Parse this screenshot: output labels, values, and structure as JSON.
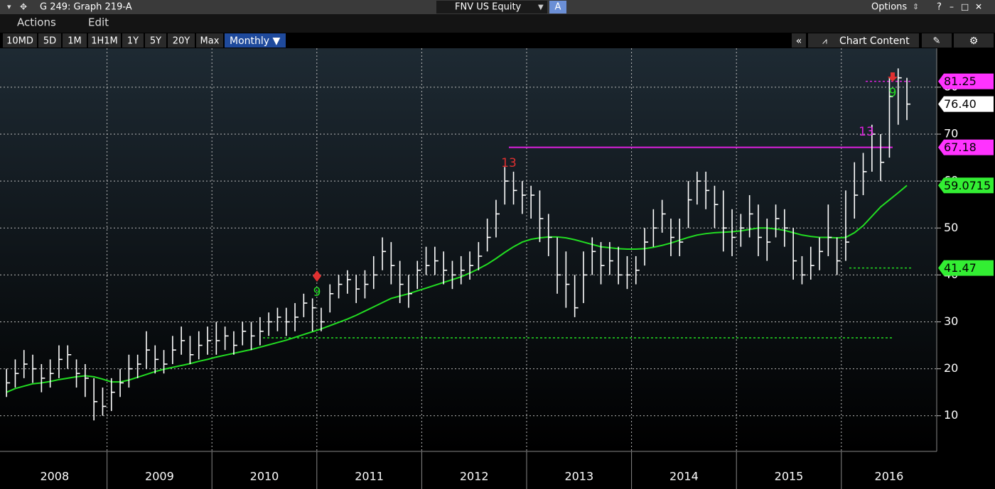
{
  "window": {
    "title": "G 249: Graph 219-A",
    "ticker": "FNV US Equity",
    "ticker_tag": "A",
    "options": "Options",
    "help": "?"
  },
  "menu": [
    "Actions",
    "Edit"
  ],
  "toolbar": {
    "ranges": [
      "10MD",
      "5D",
      "1M",
      "1H1M",
      "1Y",
      "5Y",
      "20Y",
      "Max"
    ],
    "period": "Monthly ▼",
    "collapse": "«",
    "chart_content": "Chart Content"
  },
  "chart_data": {
    "type": "ohlc",
    "categories": [
      "2008",
      "2009",
      "2010",
      "2011",
      "2012",
      "2013",
      "2014",
      "2015",
      "2016"
    ],
    "ylim": [
      2.4,
      88.3
    ],
    "yticks": [
      10,
      20,
      30,
      40,
      50,
      60,
      70,
      80
    ],
    "grid": true,
    "close": [
      17,
      19,
      21,
      20,
      18,
      19,
      22,
      23,
      19,
      18,
      13,
      12,
      15,
      17,
      20,
      21,
      24,
      22,
      21,
      24,
      26,
      23,
      25,
      26,
      26,
      27,
      25,
      28,
      27,
      28,
      30,
      31,
      30,
      31,
      34,
      33,
      30,
      36,
      38,
      39,
      37,
      38,
      40,
      45,
      42,
      38,
      36,
      41,
      42,
      43,
      41,
      40,
      41,
      42,
      44,
      48,
      53,
      60,
      58,
      57,
      57,
      52,
      48,
      40,
      38,
      33,
      40,
      45,
      42,
      43,
      40,
      40,
      41,
      47,
      50,
      53,
      48,
      47,
      56,
      60,
      58,
      55,
      50,
      48,
      50,
      53,
      48,
      47,
      52,
      50,
      43,
      40,
      42,
      45,
      48,
      43,
      47,
      57,
      62,
      70,
      64,
      78,
      82,
      76.4
    ],
    "high": [
      20,
      22,
      24,
      23,
      21,
      22,
      25,
      25,
      22,
      21,
      18,
      16,
      18,
      20,
      23,
      23,
      28,
      25,
      24,
      27,
      29,
      27,
      28,
      29,
      30,
      29,
      28,
      30,
      30,
      31,
      32,
      33,
      33,
      34,
      36,
      35,
      33,
      38,
      40,
      41,
      40,
      41,
      44,
      48,
      47,
      43,
      40,
      43,
      46,
      46,
      45,
      43,
      44,
      45,
      47,
      52,
      56,
      63,
      62,
      60,
      59,
      58,
      53,
      48,
      45,
      40,
      45,
      48,
      47,
      47,
      46,
      44,
      44,
      50,
      54,
      56,
      52,
      52,
      60,
      62,
      62,
      59,
      58,
      54,
      53,
      57,
      55,
      52,
      55,
      54,
      50,
      44,
      46,
      48,
      55,
      48,
      58,
      64,
      66,
      72,
      70,
      82,
      84,
      82
    ],
    "low": [
      14,
      16,
      18,
      17,
      15,
      16,
      18,
      20,
      16,
      14,
      9,
      10,
      11,
      14,
      16,
      18,
      20,
      19,
      19,
      21,
      23,
      21,
      22,
      23,
      23,
      24,
      23,
      25,
      24,
      25,
      27,
      28,
      27,
      28,
      31,
      28,
      28,
      32,
      35,
      36,
      34,
      35,
      37,
      41,
      38,
      34,
      33,
      37,
      40,
      40,
      38,
      37,
      38,
      39,
      41,
      45,
      48,
      55,
      55,
      53,
      52,
      47,
      44,
      36,
      33,
      31,
      34,
      40,
      38,
      40,
      38,
      37,
      38,
      42,
      46,
      49,
      44,
      44,
      50,
      55,
      54,
      50,
      45,
      44,
      46,
      48,
      44,
      43,
      48,
      46,
      39,
      38,
      39,
      41,
      44,
      40,
      43,
      52,
      57,
      62,
      60,
      65,
      72,
      73
    ],
    "bar_color": "#ffffff",
    "ma": {
      "color": "#22dd22",
      "values": [
        15,
        15.8,
        16.3,
        16.8,
        17,
        17.3,
        17.7,
        18,
        18.3,
        18.5,
        18.3,
        17.8,
        17.2,
        17.2,
        17.6,
        18.2,
        18.8,
        19.4,
        19.9,
        20.3,
        20.7,
        21.1,
        21.6,
        22,
        22.5,
        22.9,
        23.3,
        23.7,
        24.1,
        24.6,
        25.1,
        25.6,
        26.1,
        26.7,
        27.3,
        27.9,
        28.5,
        29.2,
        29.9,
        30.6,
        31.4,
        32.3,
        33.2,
        34.1,
        35,
        35.5,
        36,
        36.6,
        37.2,
        37.8,
        38.4,
        39,
        39.6,
        40.4,
        41.3,
        42.3,
        43.5,
        44.8,
        46,
        47,
        47.6,
        47.9,
        48.1,
        48.1,
        47.9,
        47.5,
        47,
        46.5,
        46,
        45.8,
        45.6,
        45.5,
        45.5,
        45.6,
        45.9,
        46.3,
        46.8,
        47.4,
        48,
        48.5,
        48.8,
        49,
        49.1,
        49.2,
        49.4,
        49.7,
        50,
        50,
        49.8,
        49.5,
        49,
        48.5,
        48.2,
        48,
        48,
        47.9,
        48,
        49,
        50.5,
        52.5,
        54.5,
        56,
        57.5,
        59.0715
      ]
    },
    "levels": [
      {
        "value": 67.18,
        "color": "#e020e0",
        "style": "solid"
      },
      {
        "value": 81.25,
        "color": "#e020e0",
        "style": "dotted"
      },
      {
        "value": 41.47,
        "color": "#22dd22",
        "style": "dotted"
      },
      {
        "value": 26.6,
        "color": "#22dd22",
        "style": "dotted"
      }
    ],
    "annotations": [
      {
        "text": "13",
        "color": "#e03030"
      },
      {
        "text": "9",
        "color": "#22dd22"
      },
      {
        "text": "13",
        "color": "#e020e0"
      },
      {
        "text": "9",
        "color": "#22dd22"
      }
    ],
    "badges": [
      {
        "value": 81.25,
        "label": "81.25",
        "color": "#ff33ff"
      },
      {
        "value": 76.4,
        "label": "76.40",
        "color": "#ffffff"
      },
      {
        "value": 67.18,
        "label": "67.18",
        "color": "#ff33ff"
      },
      {
        "value": 59.0715,
        "label": "59.0715",
        "color": "#33ee33"
      },
      {
        "value": 41.47,
        "label": "41.47",
        "color": "#33ee33"
      }
    ]
  }
}
